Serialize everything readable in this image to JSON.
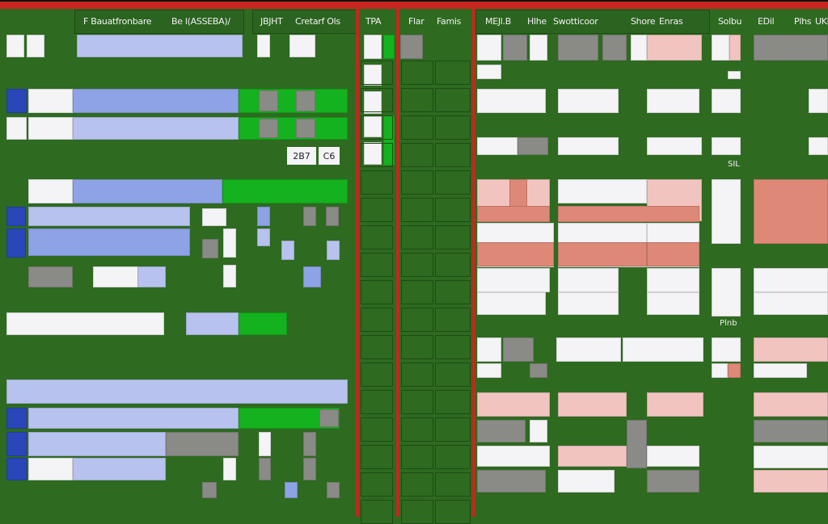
{
  "header": {
    "left": [
      "F Bauatfronbare",
      "Be l(ASSEBA)/",
      "JBJHT",
      "Cretarf Ols"
    ],
    "middle": [
      "TPA",
      "Flar",
      "Famis"
    ],
    "right": [
      "MEJl.B",
      "Hlhe",
      "Swotticoor",
      "Shore",
      "Enras",
      "Solbu",
      "EDil",
      "Plhs",
      "UKR"
    ]
  },
  "cells": {
    "a": "2B7",
    "b": "C6",
    "c": "SIL",
    "d": "Plnb"
  },
  "colors": {
    "background": "#2e6a20",
    "divider": "#c02a1e",
    "highlight": "#14b21e",
    "selection": "#8ea2e6"
  }
}
